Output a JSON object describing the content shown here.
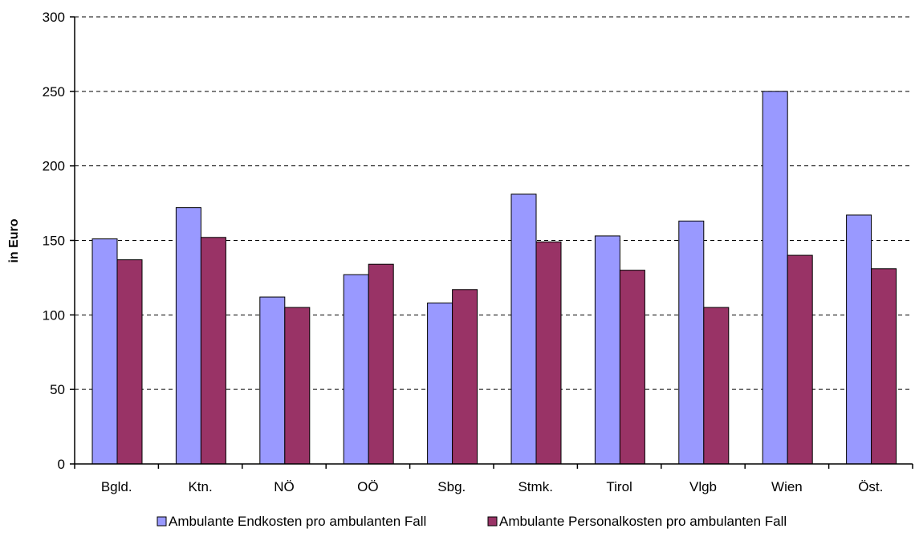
{
  "chart_data": {
    "type": "bar",
    "title": "",
    "xlabel": "",
    "ylabel": "in Euro",
    "ylim": [
      0,
      300
    ],
    "yticks": [
      0,
      50,
      100,
      150,
      200,
      250,
      300
    ],
    "grid": true,
    "legend_position": "bottom",
    "categories": [
      "Bgld.",
      "Ktn.",
      "NÖ",
      "OÖ",
      "Sbg.",
      "Stmk.",
      "Tirol",
      "Vlgb",
      "Wien",
      "Öst."
    ],
    "series": [
      {
        "name": "Ambulante Endkosten pro ambulanten Fall",
        "color": "#9999ff",
        "values": [
          151,
          172,
          112,
          127,
          108,
          181,
          153,
          163,
          250,
          167
        ]
      },
      {
        "name": "Ambulante Personalkosten pro ambulanten Fall",
        "color": "#993366",
        "values": [
          137,
          152,
          105,
          134,
          117,
          149,
          130,
          105,
          140,
          131
        ]
      }
    ]
  }
}
